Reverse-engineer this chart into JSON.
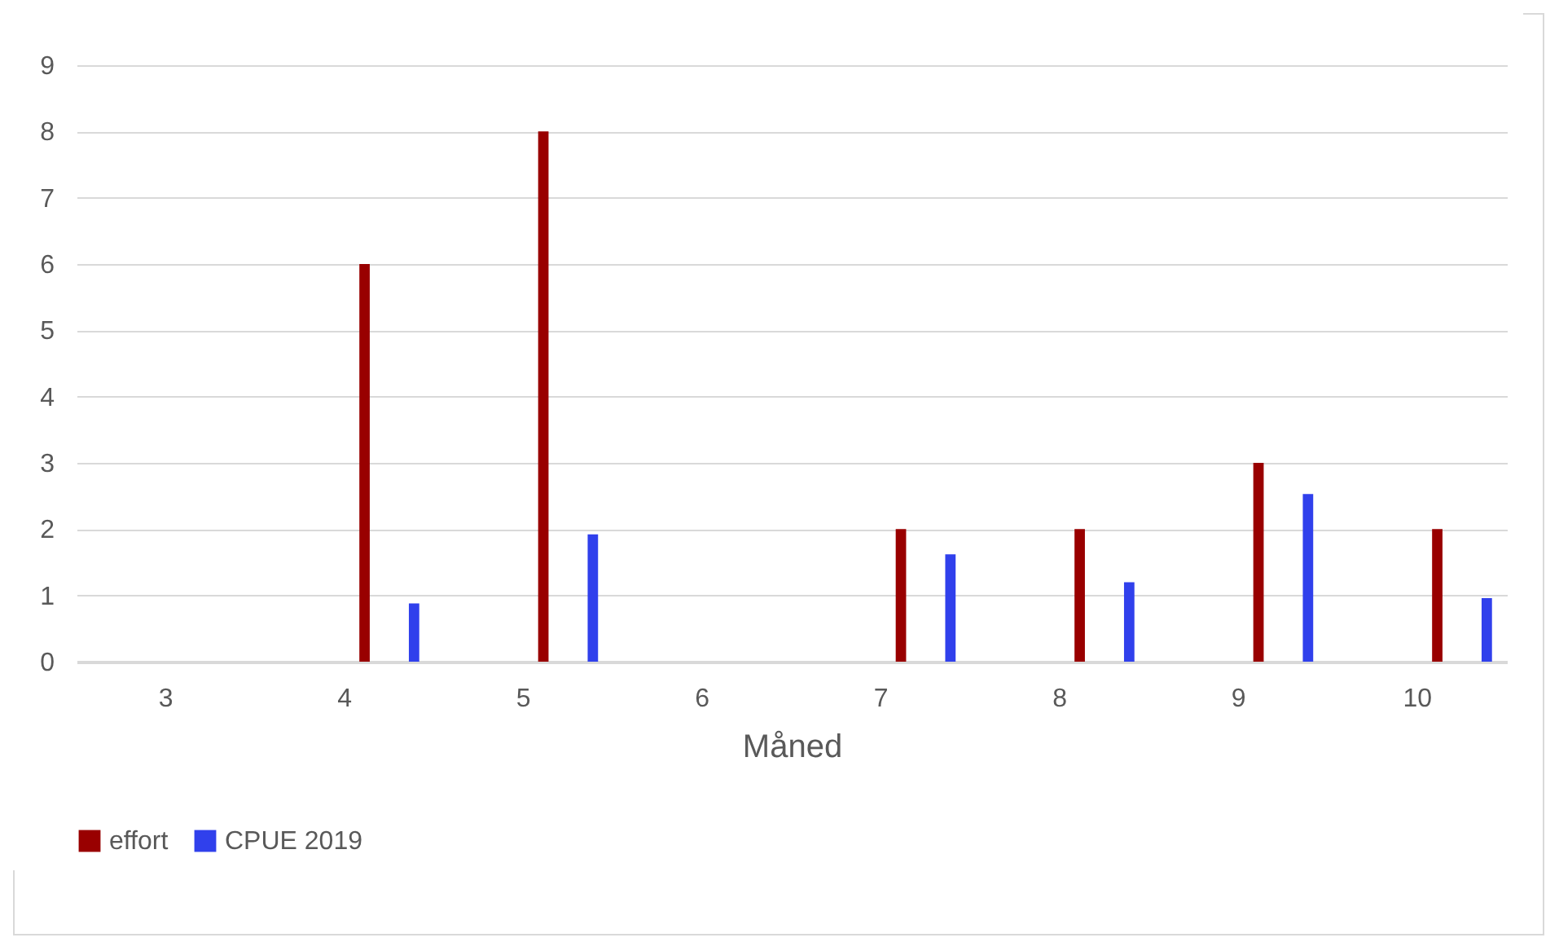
{
  "chart_data": {
    "type": "bar",
    "xlabel": "Måned",
    "categories": [
      "3",
      "4",
      "5",
      "6",
      "7",
      "8",
      "9",
      "10"
    ],
    "series": [
      {
        "name": "effort",
        "color": "#990000",
        "values": [
          null,
          6,
          8,
          null,
          2,
          2,
          3,
          2
        ]
      },
      {
        "name": "CPUE 2019",
        "color": "#3040ec",
        "values": [
          null,
          0.88,
          1.92,
          null,
          1.62,
          1.2,
          2.53,
          0.96
        ]
      }
    ],
    "ylim": [
      0,
      9
    ],
    "yticks": [
      0,
      1,
      2,
      3,
      4,
      5,
      6,
      7,
      8,
      9
    ],
    "grid": "y",
    "legend": "bottom"
  }
}
